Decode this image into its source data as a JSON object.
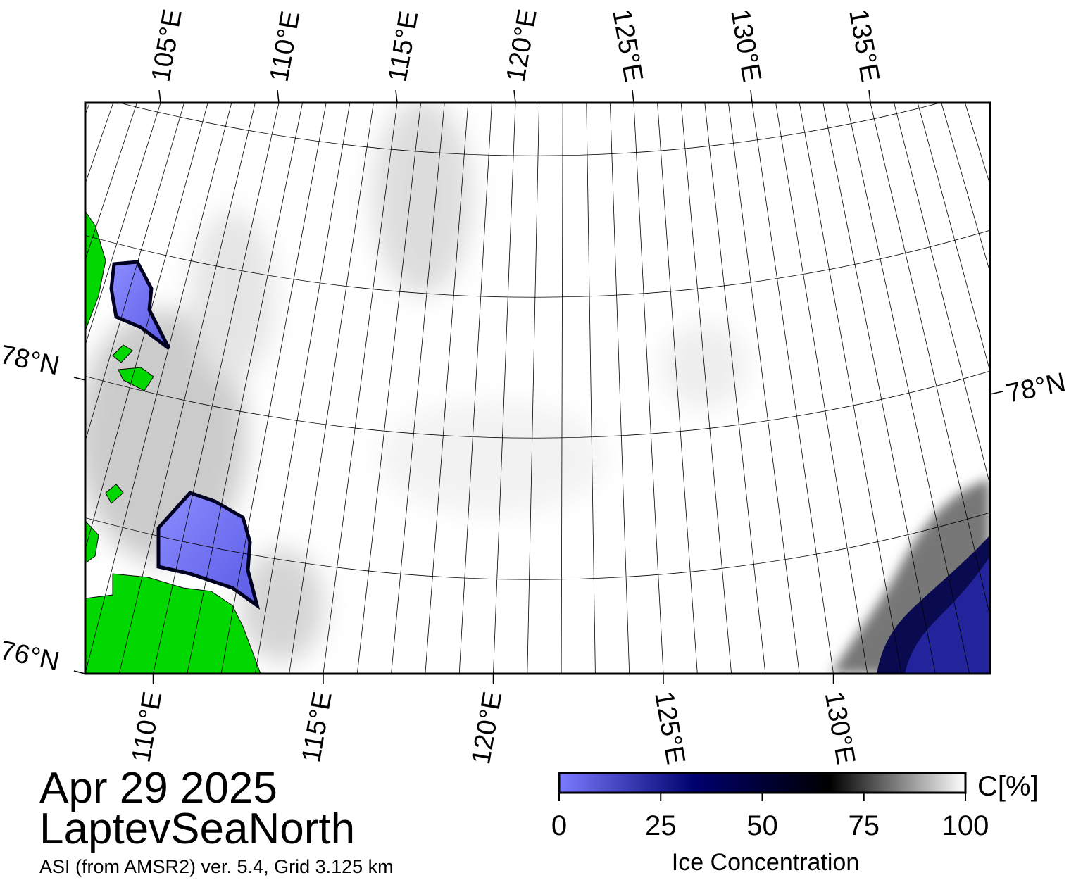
{
  "map": {
    "top_labels": [
      "105°E",
      "110°E",
      "115°E",
      "120°E",
      "125°E",
      "130°E",
      "135°E"
    ],
    "bottom_labels": [
      "110°E",
      "115°E",
      "120°E",
      "125°E",
      "130°E"
    ],
    "left_labels": [
      "78°N",
      "76°N"
    ],
    "right_labels": [
      "78°N"
    ]
  },
  "footer": {
    "date": "Apr 29 2025",
    "region": "LaptevSeaNorth",
    "source": "ASI (from AMSR2) ver. 5.4,  Grid 3.125 km"
  },
  "colorbar": {
    "label": "Ice Concentration",
    "unit": "C[%]",
    "lim": [
      0,
      100
    ],
    "ticks": [
      0,
      25,
      50,
      75,
      100
    ],
    "colors": [
      "#7b7bff",
      "#00006e",
      "#000000",
      "#ffffff"
    ]
  }
}
